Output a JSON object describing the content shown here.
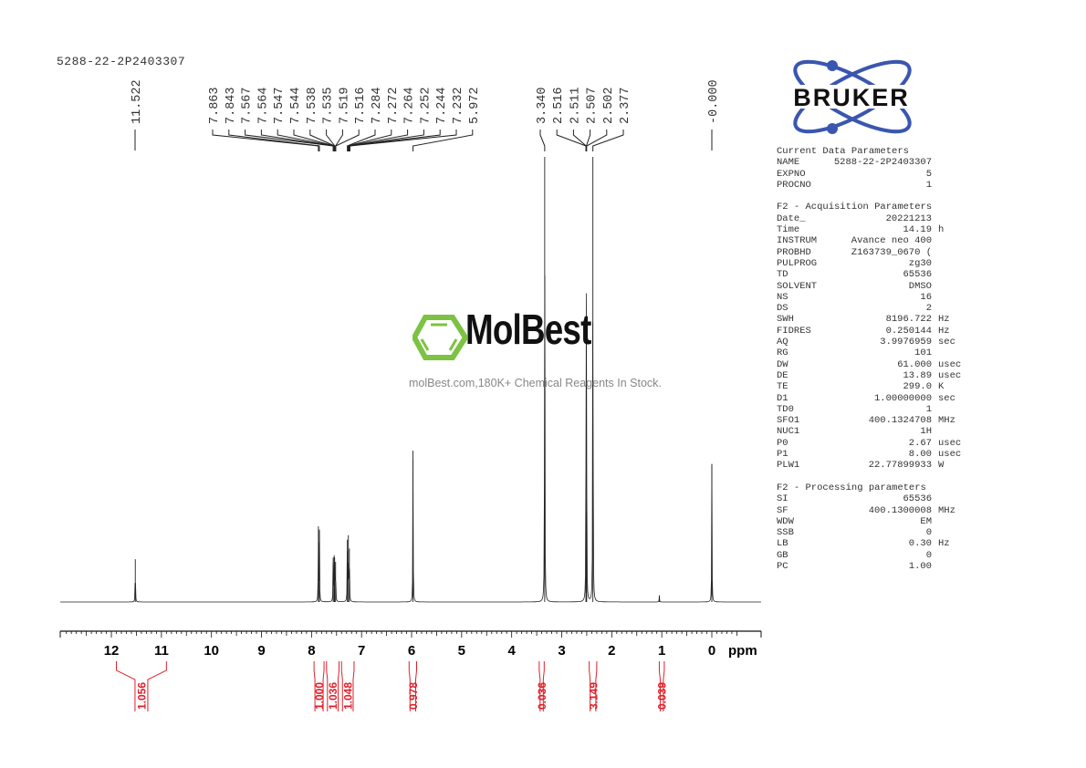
{
  "title": "5288-22-2P2403307",
  "logo": {
    "brand": "BRUKER",
    "colors": {
      "orbit": "#3a56b0",
      "text": "#111111"
    }
  },
  "watermark": {
    "name": "MolBest",
    "tagline": "molBest.com,180K+ Chemical Reagents In Stock.",
    "color": "#7dc242"
  },
  "parameters": {
    "sections": [
      {
        "heading": "Current Data Parameters",
        "rows": [
          {
            "name": "NAME",
            "value": "5288-22-2P2403307",
            "unit": ""
          },
          {
            "name": "EXPNO",
            "value": "5",
            "unit": ""
          },
          {
            "name": "PROCNO",
            "value": "1",
            "unit": ""
          }
        ]
      },
      {
        "heading": "F2 - Acquisition Parameters",
        "rows": [
          {
            "name": "Date_",
            "value": "20221213",
            "unit": ""
          },
          {
            "name": "Time",
            "value": "14.19",
            "unit": "h"
          },
          {
            "name": "INSTRUM",
            "value": "Avance neo 400",
            "unit": ""
          },
          {
            "name": "PROBHD",
            "value": "Z163739_0670 (",
            "unit": ""
          },
          {
            "name": "PULPROG",
            "value": "zg30",
            "unit": ""
          },
          {
            "name": "TD",
            "value": "65536",
            "unit": ""
          },
          {
            "name": "SOLVENT",
            "value": "DMSO",
            "unit": ""
          },
          {
            "name": "NS",
            "value": "16",
            "unit": ""
          },
          {
            "name": "DS",
            "value": "2",
            "unit": ""
          },
          {
            "name": "SWH",
            "value": "8196.722",
            "unit": "Hz"
          },
          {
            "name": "FIDRES",
            "value": "0.250144",
            "unit": "Hz"
          },
          {
            "name": "AQ",
            "value": "3.9976959",
            "unit": "sec"
          },
          {
            "name": "RG",
            "value": "101",
            "unit": ""
          },
          {
            "name": "DW",
            "value": "61.000",
            "unit": "usec"
          },
          {
            "name": "DE",
            "value": "13.89",
            "unit": "usec"
          },
          {
            "name": "TE",
            "value": "299.0",
            "unit": "K"
          },
          {
            "name": "D1",
            "value": "1.00000000",
            "unit": "sec"
          },
          {
            "name": "TD0",
            "value": "1",
            "unit": ""
          },
          {
            "name": "SFO1",
            "value": "400.1324708",
            "unit": "MHz"
          },
          {
            "name": "NUC1",
            "value": "1H",
            "unit": ""
          },
          {
            "name": "P0",
            "value": "2.67",
            "unit": "usec"
          },
          {
            "name": "P1",
            "value": "8.00",
            "unit": "usec"
          },
          {
            "name": "PLW1",
            "value": "22.77899933",
            "unit": "W"
          }
        ]
      },
      {
        "heading": "F2 - Processing parameters",
        "rows": [
          {
            "name": "SI",
            "value": "65536",
            "unit": ""
          },
          {
            "name": "SF",
            "value": "400.1300008",
            "unit": "MHz"
          },
          {
            "name": "WDW",
            "value": "EM",
            "unit": ""
          },
          {
            "name": "SSB",
            "value": "0",
            "unit": ""
          },
          {
            "name": "LB",
            "value": "0.30",
            "unit": "Hz"
          },
          {
            "name": "GB",
            "value": "0",
            "unit": ""
          },
          {
            "name": "PC",
            "value": "1.00",
            "unit": ""
          }
        ]
      }
    ]
  },
  "chart_data": {
    "type": "line",
    "xlabel": "ppm",
    "xlim": [
      13.0,
      -0.5
    ],
    "x_reversed": true,
    "x_ticks": [
      "12",
      "11",
      "10",
      "9",
      "8",
      "7",
      "6",
      "5",
      "4",
      "3",
      "2",
      "1",
      "0"
    ],
    "grid": false,
    "peak_labels": [
      {
        "group": "a",
        "labels": [
          "11.522"
        ]
      },
      {
        "group": "b",
        "labels": [
          "7.863",
          "7.843",
          "7.567",
          "7.564",
          "7.547",
          "7.544",
          "7.538",
          "7.535",
          "7.519",
          "7.516",
          "7.284",
          "7.272",
          "7.264",
          "7.252",
          "7.244",
          "7.232",
          "5.972"
        ]
      },
      {
        "group": "c",
        "labels": [
          "3.340",
          "2.516",
          "2.511",
          "2.507",
          "2.502",
          "2.377"
        ]
      },
      {
        "group": "d",
        "labels": [
          "-0.000"
        ]
      }
    ],
    "peaks": [
      {
        "ppm": 11.522,
        "intensity": 9.6
      },
      {
        "ppm": 7.863,
        "intensity": 17
      },
      {
        "ppm": 7.843,
        "intensity": 16
      },
      {
        "ppm": 7.567,
        "intensity": 10
      },
      {
        "ppm": 7.547,
        "intensity": 10.5
      },
      {
        "ppm": 7.538,
        "intensity": 10
      },
      {
        "ppm": 7.519,
        "intensity": 9
      },
      {
        "ppm": 7.284,
        "intensity": 14
      },
      {
        "ppm": 7.264,
        "intensity": 15
      },
      {
        "ppm": 7.244,
        "intensity": 12
      },
      {
        "ppm": 5.972,
        "intensity": 34
      },
      {
        "ppm": 3.34,
        "intensity": 100
      },
      {
        "ppm": 2.516,
        "intensity": 20
      },
      {
        "ppm": 2.507,
        "intensity": 61
      },
      {
        "ppm": 2.502,
        "intensity": 20
      },
      {
        "ppm": 2.377,
        "intensity": 100
      },
      {
        "ppm": 1.05,
        "intensity": 1.5
      },
      {
        "ppm": 0.0,
        "intensity": 31
      }
    ],
    "integrals": [
      {
        "from": 11.9,
        "to": 10.9,
        "value": "1.056"
      },
      {
        "from": 7.95,
        "to": 7.75,
        "value": "1.000"
      },
      {
        "from": 7.7,
        "to": 7.45,
        "value": "1.036"
      },
      {
        "from": 7.4,
        "to": 7.15,
        "value": "1.048"
      },
      {
        "from": 6.05,
        "to": 5.9,
        "value": "0.978"
      },
      {
        "from": 3.45,
        "to": 3.35,
        "value": "0.036"
      },
      {
        "from": 2.45,
        "to": 2.3,
        "value": "3.149"
      },
      {
        "from": 1.05,
        "to": 0.95,
        "value": "0.039"
      }
    ],
    "colors": {
      "spectrum": "#222222",
      "integral": "#e0202a",
      "axis": "#111111"
    }
  }
}
